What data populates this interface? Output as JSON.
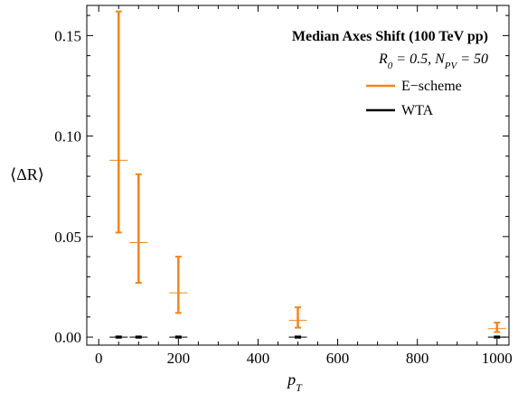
{
  "chart_data": {
    "type": "scatter",
    "title": "Median Axes Shift (100 TeV pp)",
    "subtitle_parts": {
      "r0": "R",
      "r0_sub": "0",
      "r0_val": " = 0.5, ",
      "npv": "N",
      "npv_sub": "PV",
      "npv_val": " = 50"
    },
    "xlabel": {
      "main": "p",
      "sub": "T"
    },
    "ylabel": "⟨ΔR⟩",
    "xlim": [
      -30,
      1030
    ],
    "ylim": [
      -0.004,
      0.165
    ],
    "xticks": [
      0,
      200,
      400,
      600,
      800,
      1000
    ],
    "xtick_labels": [
      "0",
      "200",
      "400",
      "600",
      "800",
      "1000"
    ],
    "yticks": [
      0.0,
      0.05,
      0.1,
      0.15
    ],
    "ytick_labels": [
      "0.00",
      "0.05",
      "0.10",
      "0.15"
    ],
    "legend_position": "top-right",
    "series": [
      {
        "name": "E−scheme",
        "color": "#f0861e",
        "points": [
          {
            "x": 50,
            "y": 0.088,
            "ylow": 0.052,
            "yhigh": 0.162
          },
          {
            "x": 100,
            "y": 0.047,
            "ylow": 0.027,
            "yhigh": 0.081
          },
          {
            "x": 200,
            "y": 0.022,
            "ylow": 0.012,
            "yhigh": 0.04
          },
          {
            "x": 500,
            "y": 0.0083,
            "ylow": 0.0047,
            "yhigh": 0.0148
          },
          {
            "x": 1000,
            "y": 0.0042,
            "ylow": 0.0025,
            "yhigh": 0.0072
          }
        ]
      },
      {
        "name": "WTA",
        "color": "#000000",
        "points": [
          {
            "x": 50,
            "y": 0.0,
            "ylow": -0.0003,
            "yhigh": 0.0003
          },
          {
            "x": 100,
            "y": 0.0,
            "ylow": -0.0003,
            "yhigh": 0.0003
          },
          {
            "x": 200,
            "y": 0.0,
            "ylow": -0.0003,
            "yhigh": 0.0003
          },
          {
            "x": 500,
            "y": 0.0,
            "ylow": -0.0003,
            "yhigh": 0.0003
          },
          {
            "x": 1000,
            "y": 0.0,
            "ylow": -0.0003,
            "yhigh": 0.0003
          }
        ]
      }
    ]
  }
}
